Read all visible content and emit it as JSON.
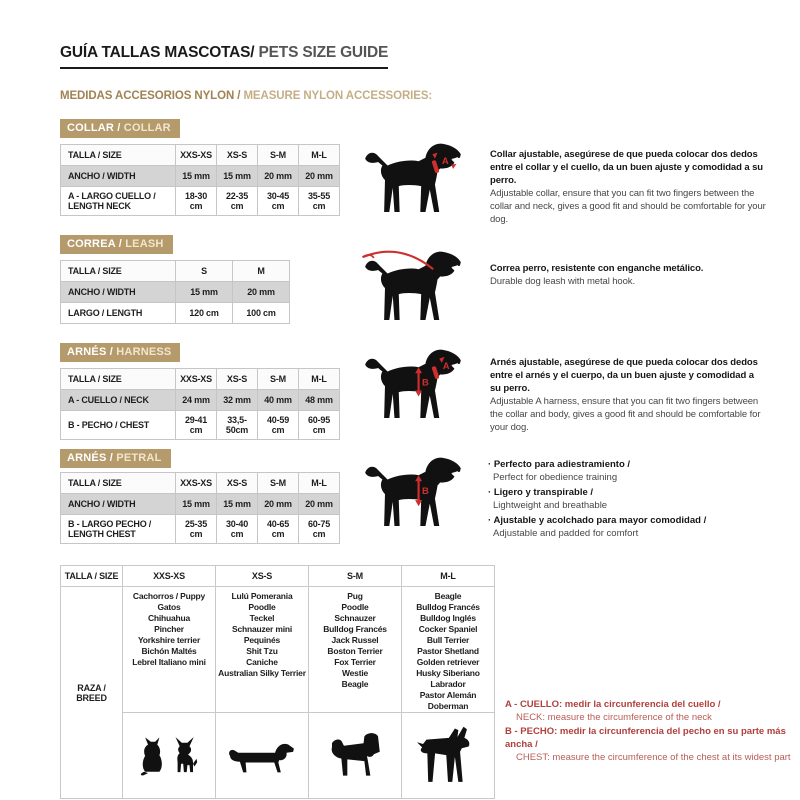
{
  "page": {
    "title_es": "GUÍA TALLAS MASCOTAS/",
    "title_en": " PETS SIZE GUIDE",
    "subtitle_es": "MEDIDAS ACCESORIOS NYLON /",
    "subtitle_en": " MEASURE NYLON ACCESSORIES:"
  },
  "colors": {
    "accent_gold": "#b59a6b",
    "accent_red": "#b13f3c",
    "shaded_row_gray": "#d4d4d4",
    "silhouette_black": "#111111"
  },
  "sections": {
    "collar": {
      "badge_es": "COLLAR /",
      "badge_en": " COLLAR",
      "marker": "A",
      "table": {
        "headers": [
          "TALLA / SIZE",
          "XXS-XS",
          "XS-S",
          "S-M",
          "M-L"
        ],
        "rows": [
          [
            "ANCHO / WIDTH",
            "15 mm",
            "15 mm",
            "20 mm",
            "20 mm"
          ],
          [
            "A - LARGO CUELLO / LENGTH NECK",
            "18-30 cm",
            "22-35 cm",
            "30-45 cm",
            "35-55 cm"
          ]
        ]
      },
      "desc_es": "Collar ajustable, asegúrese de que pueda colocar dos dedos entre el collar y el cuello, da un buen ajuste y comodidad a su perro.",
      "desc_en": "Adjustable collar, ensure that you can fit two fingers between the collar and neck, gives a good fit and should be comfortable for your dog."
    },
    "leash": {
      "badge_es": "CORREA /",
      "badge_en": " LEASH",
      "table": {
        "headers": [
          "TALLA / SIZE",
          "S",
          "M"
        ],
        "rows": [
          [
            "ANCHO / WIDTH",
            "15 mm",
            "20 mm"
          ],
          [
            "LARGO / LENGTH",
            "120 cm",
            "100 cm"
          ]
        ]
      },
      "desc_es": "Correa perro, resistente con enganche metálico.",
      "desc_en": "Durable dog leash with metal hook."
    },
    "harness": {
      "badge_es": "ARNÉS /",
      "badge_en": " HARNESS",
      "marker_a": "A",
      "marker_b": "B",
      "table": {
        "headers": [
          "TALLA / SIZE",
          "XXS-XS",
          "XS-S",
          "S-M",
          "M-L"
        ],
        "rows": [
          [
            "A - CUELLO / NECK",
            "24 mm",
            "32 mm",
            "40 mm",
            "48 mm"
          ],
          [
            "B - PECHO / CHEST",
            "29-41 cm",
            "33,5-50cm",
            "40-59 cm",
            "60-95 cm"
          ]
        ]
      },
      "desc_es": "Arnés ajustable, asegúrese de que pueda colocar dos dedos entre el arnés y el cuerpo, da un buen ajuste y comodidad a su perro.",
      "desc_en": "Adjustable A harness, ensure that you can fit two fingers between the collar and body, gives a good fit and should be comfortable for your dog."
    },
    "petral": {
      "badge_es": "ARNÉS /",
      "badge_en": " PETRAL",
      "marker": "B",
      "table": {
        "headers": [
          "TALLA / SIZE",
          "XXS-XS",
          "XS-S",
          "S-M",
          "M-L"
        ],
        "rows": [
          [
            "ANCHO / WIDTH",
            "15 mm",
            "15 mm",
            "20 mm",
            "20 mm"
          ],
          [
            "B - LARGO PECHO / LENGTH CHEST",
            "25-35 cm",
            "30-40 cm",
            "40-65 cm",
            "60-75 cm"
          ]
        ]
      },
      "bullets": [
        {
          "es": "Perfecto para adiestramiento /",
          "en": "Perfect for obedience training"
        },
        {
          "es": "Ligero y transpirable /",
          "en": "Lightweight and breathable"
        },
        {
          "es": "Ajustable y acolchado para mayor comodidad /",
          "en": "Adjustable and padded for comfort"
        }
      ]
    }
  },
  "breed_table": {
    "corner_label": "TALLA /  SIZE",
    "row_label_es": "RAZA /",
    "row_label_en": "BREED",
    "columns": [
      {
        "size": "XXS-XS",
        "breeds": [
          "Cachorros / Puppy",
          "Gatos",
          "Chihuahua",
          "Pincher",
          "Yorkshire terrier",
          "Bichón Maltés",
          "Lebrel Italiano mini"
        ],
        "icons": [
          "cat",
          "chihuahua"
        ]
      },
      {
        "size": "XS-S",
        "breeds": [
          "Lulú Pomerania",
          "Poodle",
          "Teckel",
          "Schnauzer mini",
          "Pequinés",
          "Shit Tzu",
          "Caniche",
          "Australian Silky Terrier"
        ],
        "icons": [
          "dachshund"
        ]
      },
      {
        "size": "S-M",
        "breeds": [
          "Pug",
          "Poodle",
          "Schnauzer",
          "Bulldog Francés",
          "Jack Russel",
          "Boston Terrier",
          "Fox Terrier",
          "Westie",
          "Beagle"
        ],
        "icons": [
          "schnauzer"
        ]
      },
      {
        "size": "M-L",
        "breeds": [
          "Beagle",
          "Bulldog Francés",
          "Bulldog Inglés",
          "Cocker Spaniel",
          "Bull Terrier",
          "Pastor Shetland",
          "Golden retriever",
          "Husky Siberiano",
          "Labrador",
          "Pastor Alemán",
          "Doberman"
        ],
        "icons": [
          "doberman"
        ]
      }
    ]
  },
  "measure_notes": [
    {
      "es": "A - CUELLO: medir la circunferencia del cuello /",
      "en": "NECK: measure the circumference of the neck"
    },
    {
      "es": "B - PECHO: medir la circunferencia del pecho en su parte más ancha /",
      "en": "CHEST: measure the circumference of the chest at its widest part"
    }
  ]
}
